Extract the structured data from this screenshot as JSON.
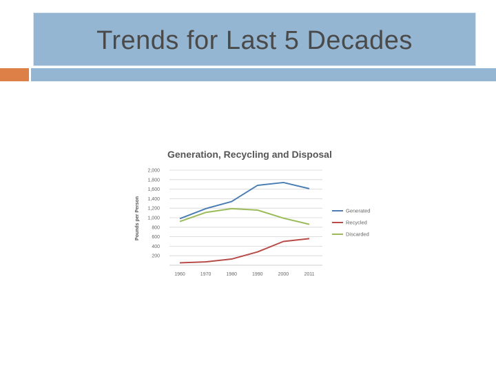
{
  "slide": {
    "title": "Trends for Last 5 Decades"
  },
  "colors": {
    "title_bar": "#94b6d2",
    "accent_orange": "#dd8047",
    "title_text": "#4a4a4a"
  },
  "chart_data": {
    "type": "line",
    "title": "Generation, Recycling and Disposal",
    "ylabel": "Pounds per Person",
    "xlabel": "",
    "categories": [
      "1960",
      "1970",
      "1980",
      "1990",
      "2000",
      "2011"
    ],
    "ylim": [
      0,
      2000
    ],
    "yticks": [
      200,
      400,
      600,
      800,
      1000,
      1200,
      1400,
      1600,
      1800,
      2000
    ],
    "ytick_labels": [
      "200",
      "400",
      "600",
      "800",
      "1,000",
      "1,200",
      "1,400",
      "1,600",
      "1,800",
      "2,000"
    ],
    "grid": true,
    "legend_position": "right",
    "series": [
      {
        "name": "Generated",
        "color": "#4a7eb3",
        "values": [
          980,
          1190,
          1340,
          1680,
          1740,
          1610
        ]
      },
      {
        "name": "Recycled",
        "color": "#b84a47",
        "values": [
          50,
          70,
          130,
          280,
          500,
          560
        ]
      },
      {
        "name": "Discarded",
        "color": "#9bbb59",
        "values": [
          920,
          1110,
          1190,
          1160,
          990,
          860
        ]
      }
    ]
  }
}
